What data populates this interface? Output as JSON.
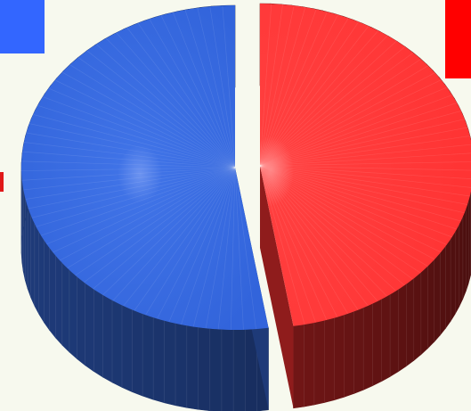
{
  "chart_data": {
    "type": "pie",
    "style": "3d-exploded",
    "slices": [
      {
        "value": 52.5,
        "color": "#3d6fe0",
        "side_color": "#1e3a78",
        "legend_color": "#3366ff"
      },
      {
        "value": 47.5,
        "color": "#ff3b3b",
        "side_color": "#8f1c1c",
        "legend_color": "#ff0000"
      }
    ],
    "legend": {
      "placement": "top",
      "entries": []
    },
    "marker_color": "#e01818"
  }
}
